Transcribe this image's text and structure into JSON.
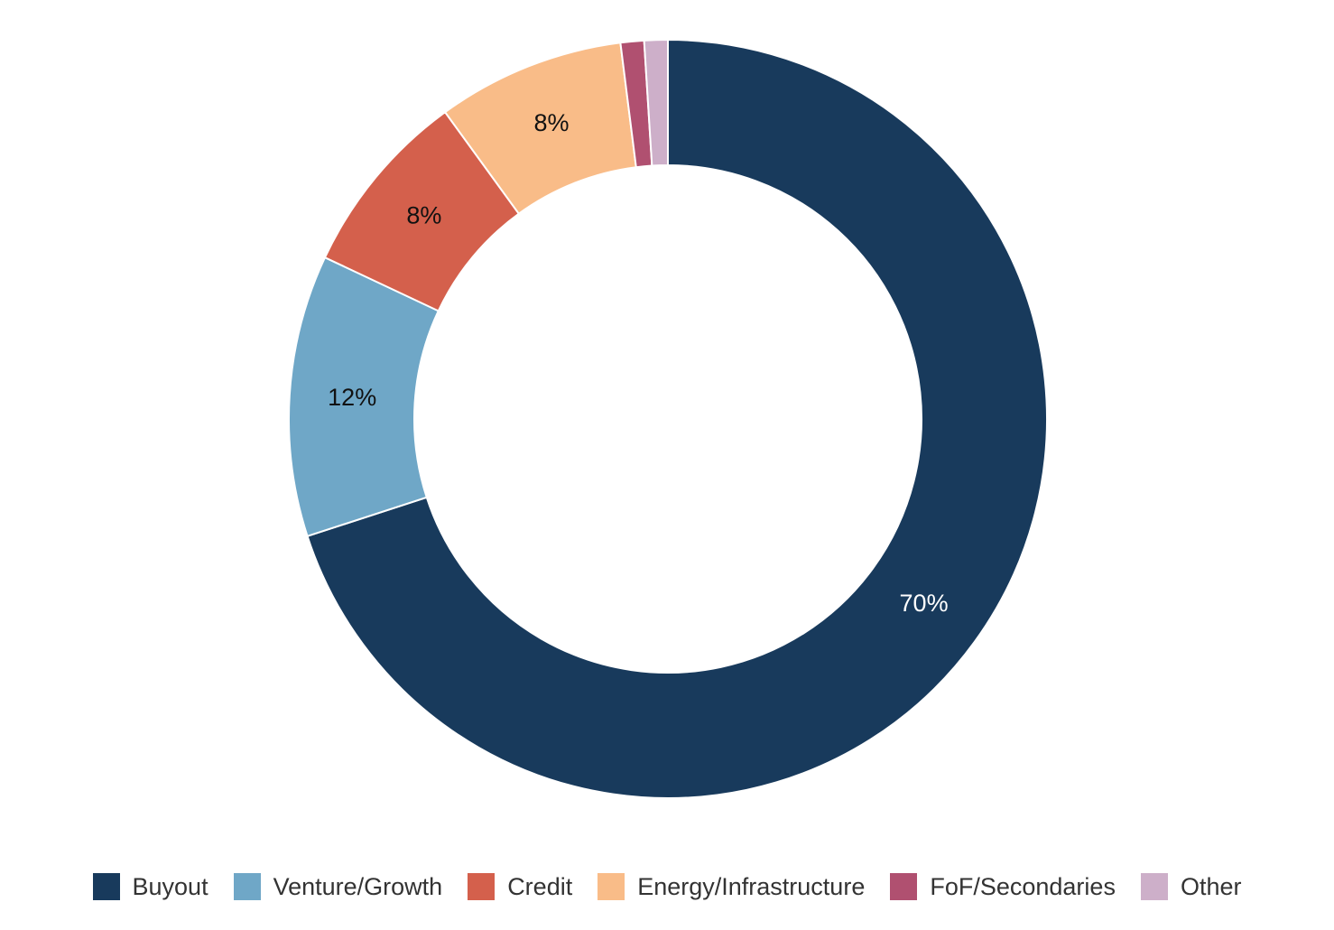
{
  "chart_data": {
    "type": "pie",
    "categories": [
      "Buyout",
      "Venture/Growth",
      "Credit",
      "Energy/Infrastructure",
      "FoF/Secondaries",
      "Other"
    ],
    "values": [
      70,
      12,
      8,
      8,
      1,
      1
    ],
    "data_labels": [
      "70%",
      "12%",
      "8%",
      "8%",
      "",
      ""
    ],
    "colors": [
      "#183A5C",
      "#6FA7C7",
      "#D4604C",
      "#F9BC88",
      "#B05070",
      "#CDAFC9"
    ],
    "label_colors": [
      "#ffffff",
      "#111111",
      "#111111",
      "#111111",
      "#111111",
      "#111111"
    ],
    "donut": true,
    "legend": "bottom"
  }
}
